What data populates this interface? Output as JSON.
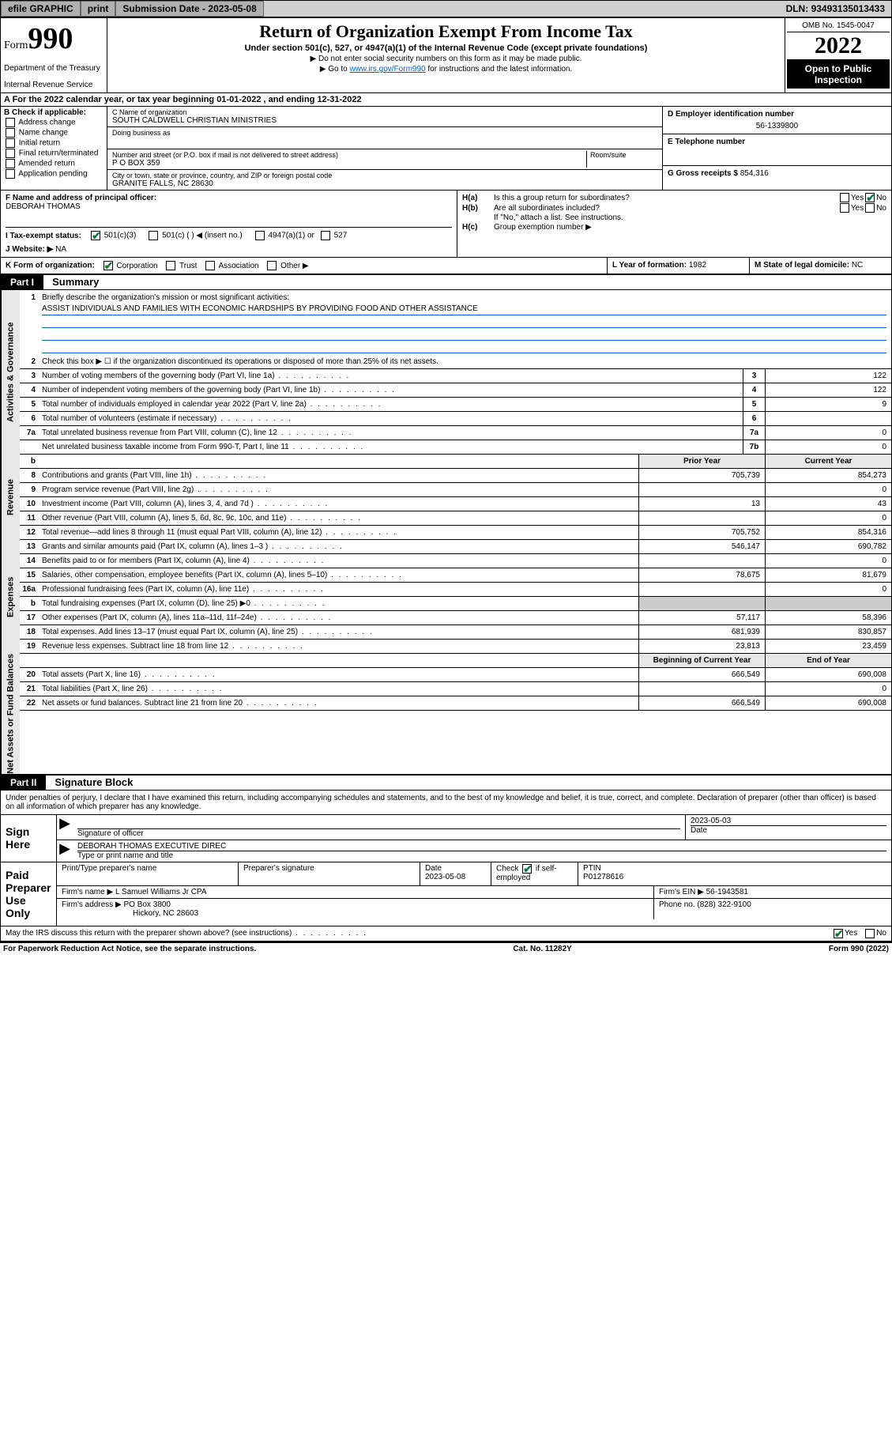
{
  "topbar": {
    "efile": "efile GRAPHIC",
    "print": "print",
    "submission_label": "Submission Date - ",
    "submission_date": "2023-05-08",
    "dln_label": "DLN: ",
    "dln": "93493135013433"
  },
  "header": {
    "form_word": "Form",
    "form_number": "990",
    "dept": "Department of the Treasury",
    "irs": "Internal Revenue Service",
    "title": "Return of Organization Exempt From Income Tax",
    "subtitle": "Under section 501(c), 527, or 4947(a)(1) of the Internal Revenue Code (except private foundations)",
    "note1": "▶ Do not enter social security numbers on this form as it may be made public.",
    "note2_pre": "▶ Go to ",
    "note2_link": "www.irs.gov/Form990",
    "note2_post": " for instructions and the latest information.",
    "omb": "OMB No. 1545-0047",
    "year": "2022",
    "open": "Open to Public Inspection"
  },
  "row_a": {
    "text": "A For the 2022 calendar year, or tax year beginning 01-01-2022    , and ending 12-31-2022"
  },
  "section_b": {
    "label": "B Check if applicable:",
    "opts": [
      "Address change",
      "Name change",
      "Initial return",
      "Final return/terminated",
      "Amended return",
      "Application pending"
    ]
  },
  "section_c": {
    "name_label": "C Name of organization",
    "name": "SOUTH CALDWELL CHRISTIAN MINISTRIES",
    "dba_label": "Doing business as",
    "dba": "",
    "street_label": "Number and street (or P.O. box if mail is not delivered to street address)",
    "room_label": "Room/suite",
    "street": "P O BOX 359",
    "city_label": "City or town, state or province, country, and ZIP or foreign postal code",
    "city": "GRANITE FALLS, NC   28630"
  },
  "section_d": {
    "label": "D Employer identification number",
    "value": "56-1339800"
  },
  "section_e": {
    "label": "E Telephone number",
    "value": ""
  },
  "section_g": {
    "label": "G Gross receipts $ ",
    "value": "854,316"
  },
  "section_f": {
    "label": "F Name and address of principal officer:",
    "name": "DEBORAH THOMAS"
  },
  "section_h": {
    "a": "Is this a group return for subordinates?",
    "b": "Are all subordinates included?",
    "b_note": "If \"No,\" attach a list. See instructions.",
    "c": "Group exemption number ▶",
    "yes": "Yes",
    "no": "No"
  },
  "row_i": {
    "label": "I    Tax-exempt status:",
    "opts": [
      "501(c)(3)",
      "501(c) (  ) ◀ (insert no.)",
      "4947(a)(1) or",
      "527"
    ]
  },
  "row_j": {
    "label": "J    Website: ▶",
    "value": "NA"
  },
  "row_k": {
    "label": "K Form of organization:",
    "opts": [
      "Corporation",
      "Trust",
      "Association",
      "Other ▶"
    ]
  },
  "row_l": {
    "label": "L Year of formation: ",
    "value": "1982"
  },
  "row_m": {
    "label": "M State of legal domicile: ",
    "value": "NC"
  },
  "part1": {
    "header": "Part I",
    "title": "Summary",
    "q1": "Briefly describe the organization's mission or most significant activities:",
    "mission": "ASSIST INDIVIDUALS AND FAMILIES WITH ECONOMIC HARDSHIPS BY PROVIDING FOOD AND OTHER ASSISTANCE",
    "q2": "Check this box ▶ ☐  if the organization discontinued its operations or disposed of more than 25% of its net assets.",
    "vtabs": [
      "Activities & Governance",
      "Revenue",
      "Expenses",
      "Net Assets or Fund Balances"
    ],
    "lines_gov": [
      {
        "n": "3",
        "d": "Number of voting members of the governing body (Part VI, line 1a)",
        "box": "3",
        "v": "122"
      },
      {
        "n": "4",
        "d": "Number of independent voting members of the governing body (Part VI, line 1b)",
        "box": "4",
        "v": "122"
      },
      {
        "n": "5",
        "d": "Total number of individuals employed in calendar year 2022 (Part V, line 2a)",
        "box": "5",
        "v": "9"
      },
      {
        "n": "6",
        "d": "Total number of volunteers (estimate if necessary)",
        "box": "6",
        "v": ""
      },
      {
        "n": "7a",
        "d": "Total unrelated business revenue from Part VIII, column (C), line 12",
        "box": "7a",
        "v": "0"
      },
      {
        "n": "",
        "d": "Net unrelated business taxable income from Form 990-T, Part I, line 11",
        "box": "7b",
        "v": "0"
      }
    ],
    "col_prior_hdr": "Prior Year",
    "col_curr_hdr": "Current Year",
    "lines_rev": [
      {
        "n": "8",
        "d": "Contributions and grants (Part VIII, line 1h)",
        "p": "705,739",
        "c": "854,273"
      },
      {
        "n": "9",
        "d": "Program service revenue (Part VIII, line 2g)",
        "p": "",
        "c": "0"
      },
      {
        "n": "10",
        "d": "Investment income (Part VIII, column (A), lines 3, 4, and 7d )",
        "p": "13",
        "c": "43"
      },
      {
        "n": "11",
        "d": "Other revenue (Part VIII, column (A), lines 5, 6d, 8c, 9c, 10c, and 11e)",
        "p": "",
        "c": "0"
      },
      {
        "n": "12",
        "d": "Total revenue—add lines 8 through 11 (must equal Part VIII, column (A), line 12)",
        "p": "705,752",
        "c": "854,316"
      }
    ],
    "lines_exp": [
      {
        "n": "13",
        "d": "Grants and similar amounts paid (Part IX, column (A), lines 1–3 )",
        "p": "546,147",
        "c": "690,782"
      },
      {
        "n": "14",
        "d": "Benefits paid to or for members (Part IX, column (A), line 4)",
        "p": "",
        "c": "0"
      },
      {
        "n": "15",
        "d": "Salaries, other compensation, employee benefits (Part IX, column (A), lines 5–10)",
        "p": "78,675",
        "c": "81,679"
      },
      {
        "n": "16a",
        "d": "Professional fundraising fees (Part IX, column (A), line 11e)",
        "p": "",
        "c": "0"
      },
      {
        "n": "b",
        "d": "Total fundraising expenses (Part IX, column (D), line 25) ▶0",
        "p": "grey",
        "c": "grey"
      },
      {
        "n": "17",
        "d": "Other expenses (Part IX, column (A), lines 11a–11d, 11f–24e)",
        "p": "57,117",
        "c": "58,396"
      },
      {
        "n": "18",
        "d": "Total expenses. Add lines 13–17 (must equal Part IX, column (A), line 25)",
        "p": "681,939",
        "c": "830,857"
      },
      {
        "n": "19",
        "d": "Revenue less expenses. Subtract line 18 from line 12",
        "p": "23,813",
        "c": "23,459"
      }
    ],
    "col_begin_hdr": "Beginning of Current Year",
    "col_end_hdr": "End of Year",
    "lines_net": [
      {
        "n": "20",
        "d": "Total assets (Part X, line 16)",
        "p": "666,549",
        "c": "690,008"
      },
      {
        "n": "21",
        "d": "Total liabilities (Part X, line 26)",
        "p": "",
        "c": "0"
      },
      {
        "n": "22",
        "d": "Net assets or fund balances. Subtract line 21 from line 20",
        "p": "666,549",
        "c": "690,008"
      }
    ]
  },
  "part2": {
    "header": "Part II",
    "title": "Signature Block",
    "declare": "Under penalties of perjury, I declare that I have examined this return, including accompanying schedules and statements, and to the best of my knowledge and belief, it is true, correct, and complete. Declaration of preparer (other than officer) is based on all information of which preparer has any knowledge.",
    "sign_here": "Sign Here",
    "sig_officer": "Signature of officer",
    "sig_date": "Date",
    "sig_date_val": "2023-05-03",
    "sig_name": "DEBORAH THOMAS  EXECUTIVE DIREC",
    "sig_name_label": "Type or print name and title",
    "paid": "Paid Preparer Use Only",
    "p_name_label": "Print/Type preparer's name",
    "p_sig_label": "Preparer's signature",
    "p_date_label": "Date",
    "p_date": "2023-05-08",
    "p_check_label": "Check",
    "p_self": "if self-employed",
    "p_ptin_label": "PTIN",
    "p_ptin": "P01278616",
    "firm_name_label": "Firm's name    ▶",
    "firm_name": "L Samuel Williams Jr CPA",
    "firm_ein_label": "Firm's EIN ▶",
    "firm_ein": "56-1943581",
    "firm_addr_label": "Firm's address ▶",
    "firm_addr1": "PO Box 3800",
    "firm_addr2": "Hickory, NC  28603",
    "firm_phone_label": "Phone no.",
    "firm_phone": "(828) 322-9100",
    "discuss": "May the IRS discuss this return with the preparer shown above? (see instructions)",
    "yes": "Yes",
    "no": "No"
  },
  "footer": {
    "left": "For Paperwork Reduction Act Notice, see the separate instructions.",
    "center": "Cat. No. 11282Y",
    "right": "Form 990 (2022)"
  },
  "colors": {
    "link": "#0066cc",
    "check": "#0a7a3a",
    "grey": "#cccccc",
    "vtab_bg": "#e8e8e8"
  }
}
